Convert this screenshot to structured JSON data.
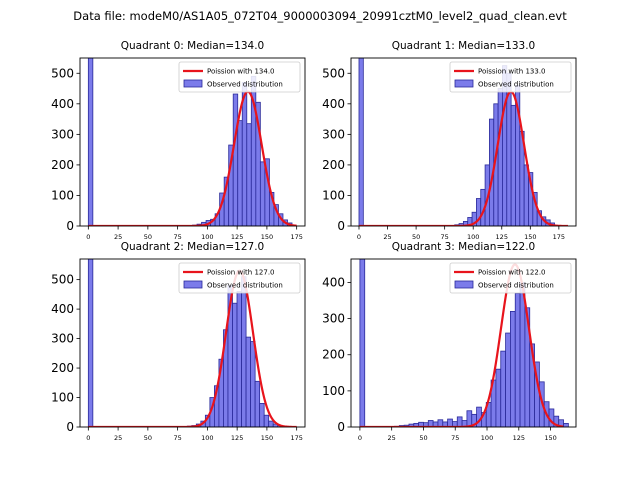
{
  "figure": {
    "suptitle": "Data file: modeM0/AS1A05_072T04_9000003094_20991cztM0_level2_quad_clean.evt"
  },
  "colors": {
    "bar_fill": "#7b7bea",
    "bar_edge": "#2a2a9a",
    "curve": "#e8141c"
  },
  "chart_data": [
    {
      "type": "bar",
      "title": "Quadrant 0: Median=134.0",
      "xlim": [
        -7,
        182
      ],
      "ylim": [
        0,
        550
      ],
      "xticks": [
        0,
        25,
        50,
        75,
        100,
        125,
        150,
        175
      ],
      "yticks": [
        0,
        100,
        200,
        300,
        400,
        500
      ],
      "bin_width": 3.8,
      "bin_starts": [
        0,
        87.5,
        91.3,
        95.1,
        98.9,
        102.7,
        106.5,
        110.3,
        114.1,
        117.9,
        121.7,
        125.5,
        129.3,
        133.1,
        136.9,
        140.7,
        144.5,
        148.3,
        152.1,
        155.9,
        159.7,
        163.5,
        167.3
      ],
      "counts": [
        560,
        3,
        6,
        12,
        18,
        22,
        40,
        108,
        160,
        265,
        432,
        345,
        470,
        335,
        490,
        405,
        210,
        220,
        110,
        70,
        40,
        20,
        10
      ],
      "curve": {
        "label": "Poission with 134.0",
        "mean": 134.0,
        "peak": 440,
        "sigma": 11.6,
        "x_range": [
          0,
          175
        ]
      },
      "legend": [
        "Poission with 134.0",
        "Observed distribution"
      ],
      "legend_position": "upper right"
    },
    {
      "type": "bar",
      "title": "Quadrant 1: Median=133.0",
      "xlim": [
        -7,
        190
      ],
      "ylim": [
        0,
        550
      ],
      "xticks": [
        0,
        25,
        50,
        75,
        100,
        125,
        150,
        175
      ],
      "yticks": [
        0,
        100,
        200,
        300,
        400,
        500
      ],
      "bin_width": 3.8,
      "bin_starts": [
        0,
        80,
        83.8,
        87.6,
        91.4,
        95.2,
        99,
        102.8,
        106.6,
        110.4,
        114.2,
        118,
        121.8,
        125.6,
        129.4,
        133.2,
        137,
        140.8,
        144.6,
        148.4,
        152.2,
        156,
        159.8,
        163.6,
        167.4
      ],
      "counts": [
        560,
        2,
        4,
        8,
        15,
        28,
        45,
        90,
        120,
        200,
        350,
        400,
        450,
        525,
        500,
        395,
        460,
        310,
        200,
        175,
        110,
        50,
        30,
        20,
        10
      ],
      "curve": {
        "label": "Poission with 133.0",
        "mean": 133.0,
        "peak": 440,
        "sigma": 11.5,
        "x_range": [
          0,
          183
        ]
      },
      "legend": [
        "Poission with 133.0",
        "Observed distribution"
      ],
      "legend_position": "upper right"
    },
    {
      "type": "bar",
      "title": "Quadrant 2: Median=127.0",
      "xlim": [
        -7,
        182
      ],
      "ylim": [
        0,
        570
      ],
      "xticks": [
        0,
        25,
        50,
        75,
        100,
        125,
        150,
        175
      ],
      "yticks": [
        0,
        100,
        200,
        300,
        400,
        500
      ],
      "bin_width": 3.8,
      "bin_starts": [
        0,
        83.1,
        86.9,
        90.7,
        94.5,
        98.3,
        102.1,
        105.9,
        109.7,
        113.5,
        117.3,
        121.1,
        124.9,
        128.7,
        132.5,
        136.3,
        140.1,
        143.9,
        147.7,
        151.5,
        155.3,
        159.1,
        162.9
      ],
      "counts": [
        570,
        3,
        5,
        10,
        20,
        40,
        100,
        140,
        230,
        330,
        480,
        420,
        460,
        510,
        305,
        290,
        155,
        80,
        40,
        20,
        10,
        5,
        3
      ],
      "curve": {
        "label": "Poission with 127.0",
        "mean": 127.0,
        "peak": 530,
        "sigma": 11.3,
        "x_range": [
          0,
          175
        ]
      },
      "legend": [
        "Poission with 127.0",
        "Observed distribution"
      ],
      "legend_position": "upper right"
    },
    {
      "type": "bar",
      "title": "Quadrant 3: Median=122.0",
      "xlim": [
        -7,
        170
      ],
      "ylim": [
        0,
        465
      ],
      "xticks": [
        0,
        25,
        50,
        75,
        100,
        125,
        150
      ],
      "yticks": [
        0,
        100,
        200,
        300,
        400
      ],
      "bin_width": 3.8,
      "bin_starts": [
        0,
        27.2,
        31,
        34.8,
        38.6,
        42.4,
        46.2,
        50,
        53.8,
        57.6,
        61.4,
        65.2,
        69,
        72.8,
        76.6,
        80.4,
        84.2,
        88,
        91.8,
        95.6,
        99.4,
        103.2,
        107,
        110.8,
        114.6,
        118.4,
        122.2,
        126,
        129.8,
        133.6,
        137.4,
        141.2,
        145,
        148.8,
        152.6,
        156.4,
        160.2
      ],
      "counts": [
        470,
        2,
        4,
        5,
        8,
        10,
        13,
        12,
        18,
        14,
        20,
        14,
        22,
        15,
        28,
        18,
        45,
        35,
        55,
        40,
        68,
        130,
        160,
        210,
        260,
        320,
        370,
        400,
        330,
        230,
        180,
        125,
        70,
        50,
        30,
        20,
        10
      ],
      "curve": {
        "label": "Poission with 122.0",
        "mean": 122.0,
        "peak": 450,
        "sigma": 11.0,
        "x_range": [
          0,
          160
        ]
      },
      "legend": [
        "Poission with 122.0",
        "Observed distribution"
      ],
      "legend_position": "upper right"
    }
  ]
}
